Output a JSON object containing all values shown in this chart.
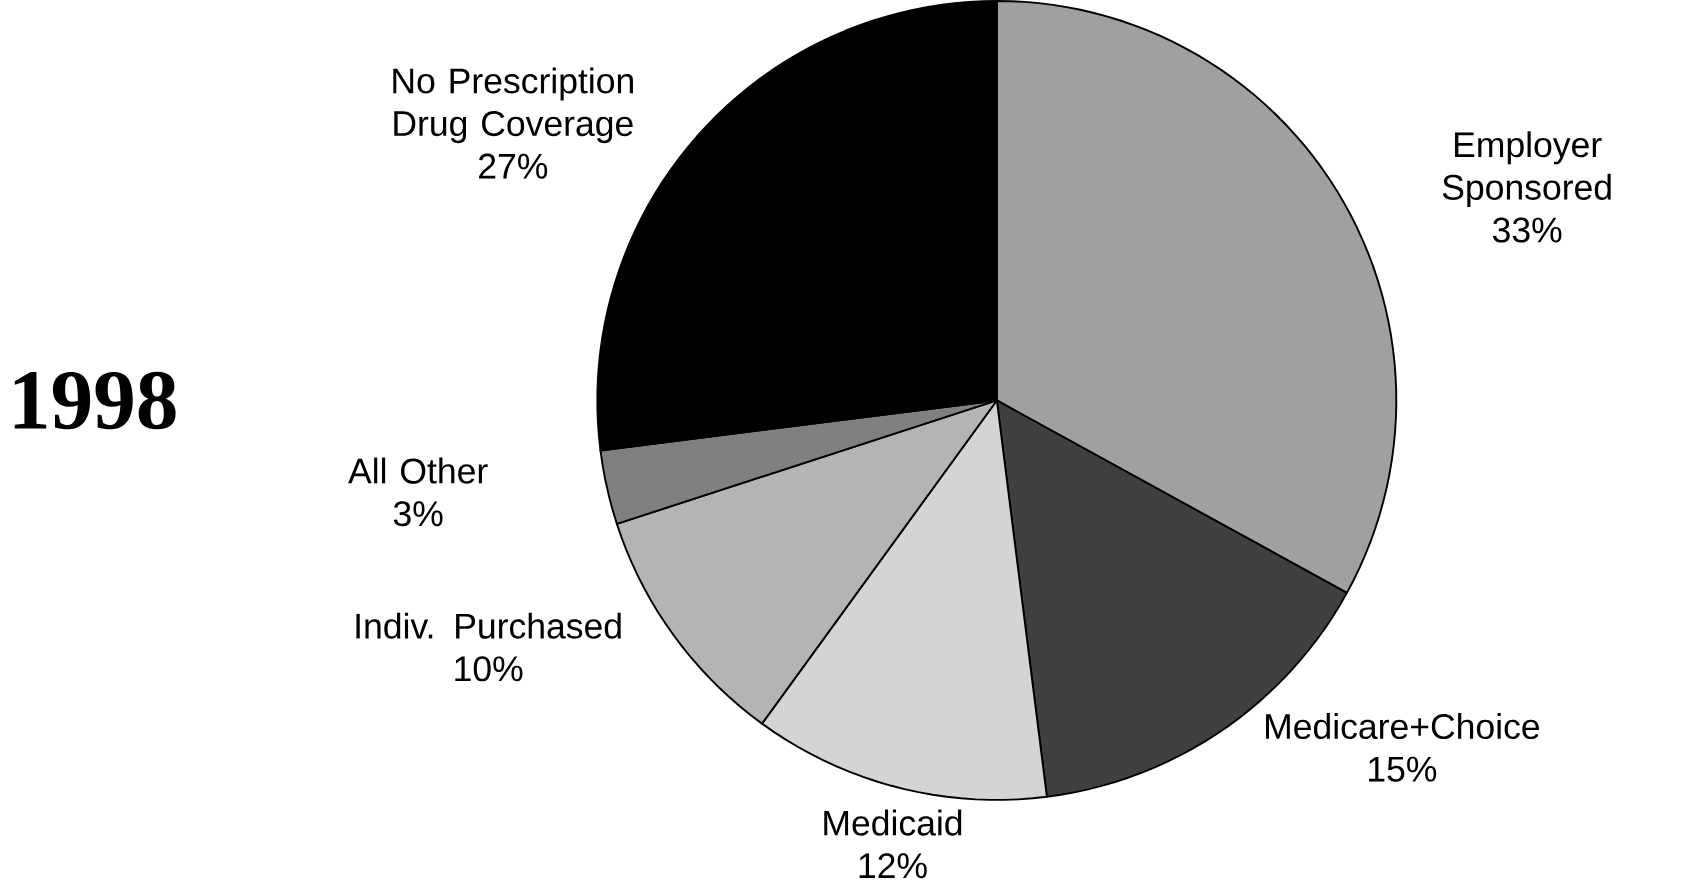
{
  "chart_data": {
    "type": "pie",
    "title": "1998",
    "categories": [
      "Employer Sponsored",
      "Medicare+Choice",
      "Medicaid",
      "Indiv. Purchased",
      "All Other",
      "No Prescription Drug Coverage"
    ],
    "values": [
      33,
      15,
      12,
      10,
      3,
      27
    ],
    "value_labels": [
      "33%",
      "15%",
      "12%",
      "10%",
      "3%",
      "27%"
    ],
    "colors": [
      "#a0a0a0",
      "#404040",
      "#d4d4d4",
      "#b4b4b4",
      "#808080",
      "#000000"
    ]
  }
}
